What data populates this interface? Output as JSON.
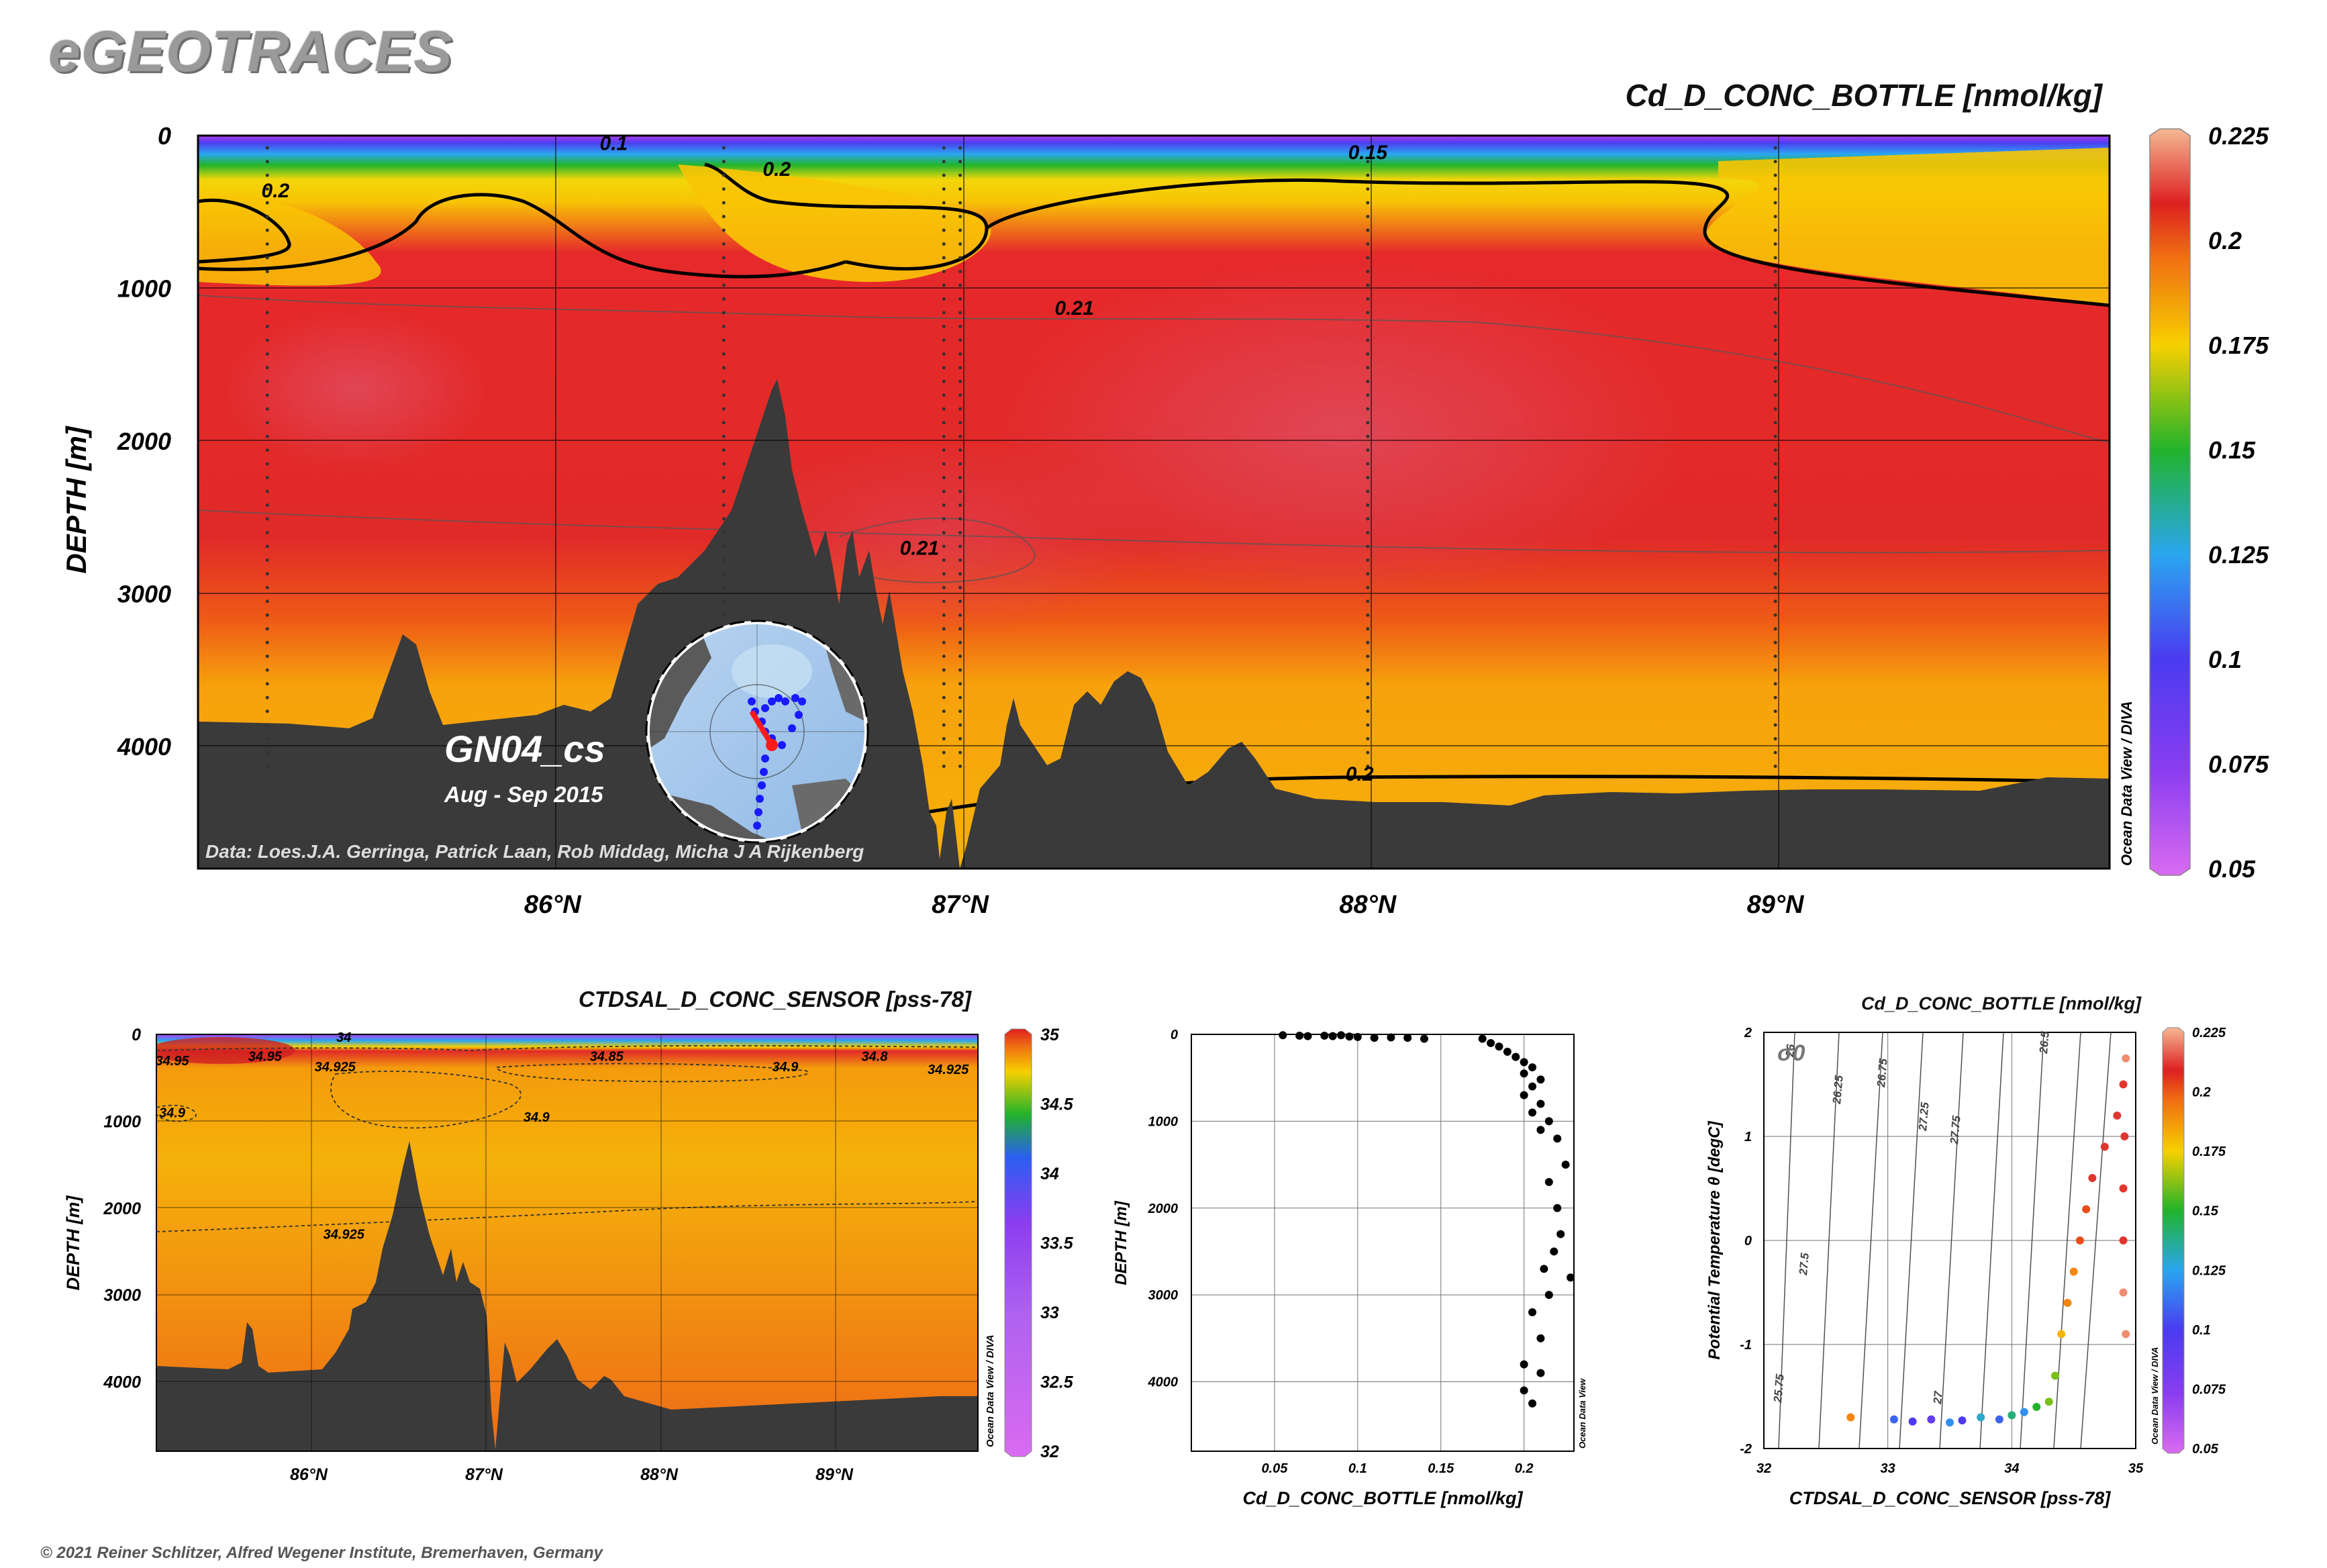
{
  "brand": "eGEOTRACES",
  "copyright": "© 2021 Reiner Schlitzer, Alfred Wegener Institute, Bremerhaven, Germany",
  "watermark": "Ocean Data View / DIVA",
  "watermark_odv": "Ocean Data View",
  "colors": {
    "bathymetry": "#3a3a3a",
    "contour": "#000000",
    "station_dot": "#000000",
    "track": "#1a1aff",
    "track_highlight": "#ff1a1a"
  },
  "main_section": {
    "title": "Cd_D_CONC_BOTTLE [nmol/kg]",
    "cruise": "GN04_cs",
    "period": "Aug - Sep 2015",
    "credit": "Data: Loes.J.A. Gerringa, Patrick Laan, Rob Middag, Micha J A Rijkenberg"
  },
  "salinity_section": {
    "title": "CTDSAL_D_CONC_SENSOR [pss-78]"
  },
  "profile_plot": {
    "xlabel": "Cd_D_CONC_BOTTLE [nmol/kg]",
    "ylabel": "DEPTH [m]"
  },
  "ts_plot": {
    "title": "Cd_D_CONC_BOTTLE [nmol/kg]",
    "sigma_label": "σ0",
    "xlabel": "CTDSAL_D_CONC_SENSOR [pss-78]",
    "ylabel": "Potential Temperature θ [degC]"
  },
  "chart_data": [
    {
      "type": "heatmap",
      "variable": "Cd_D_CONC_BOTTLE",
      "unit": "nmol/kg",
      "xlabel": "",
      "ylabel": "DEPTH [m]",
      "x_ticks": [
        "86°N",
        "87°N",
        "88°N",
        "89°N"
      ],
      "xlim": [
        85.13,
        89.82
      ],
      "y_ticks": [
        0,
        1000,
        2000,
        3000,
        4000
      ],
      "ylim": [
        4800,
        0
      ],
      "colorbar": {
        "ticks": [
          0.225,
          0.2,
          0.175,
          0.15,
          0.125,
          0.1,
          0.075,
          0.05
        ],
        "range": [
          0.05,
          0.225
        ]
      },
      "contour_labels": [
        {
          "label": "0.1",
          "lat": 86.15,
          "depth": 50
        },
        {
          "label": "0.15",
          "lat": 88.0,
          "depth": 110
        },
        {
          "label": "0.2",
          "lat": 85.32,
          "depth": 360
        },
        {
          "label": "0.2",
          "lat": 86.55,
          "depth": 220
        },
        {
          "label": "0.21",
          "lat": 87.28,
          "depth": 1130
        },
        {
          "label": "0.21",
          "lat": 86.9,
          "depth": 2700
        },
        {
          "label": "0.2",
          "lat": 87.98,
          "depth": 4180
        }
      ],
      "grid": true
    },
    {
      "type": "heatmap",
      "variable": "CTDSAL_D_CONC_SENSOR",
      "unit": "pss-78",
      "xlabel": "",
      "ylabel": "DEPTH [m]",
      "x_ticks": [
        "86°N",
        "87°N",
        "88°N",
        "89°N"
      ],
      "xlim": [
        85.13,
        89.82
      ],
      "y_ticks": [
        0,
        1000,
        2000,
        3000,
        4000
      ],
      "ylim": [
        4800,
        0
      ],
      "colorbar": {
        "ticks": [
          35,
          34.5,
          34,
          33.5,
          33,
          32.5,
          32
        ],
        "range": [
          32,
          35
        ]
      },
      "contour_labels": [
        {
          "label": "34",
          "lat": 86.2,
          "depth": 30
        },
        {
          "label": "34.95",
          "lat": 85.22,
          "depth": 300
        },
        {
          "label": "34.95",
          "lat": 85.75,
          "depth": 250
        },
        {
          "label": "34.925",
          "lat": 86.15,
          "depth": 370
        },
        {
          "label": "34.85",
          "lat": 87.7,
          "depth": 250
        },
        {
          "label": "34.9",
          "lat": 88.72,
          "depth": 370
        },
        {
          "label": "34.8",
          "lat": 89.23,
          "depth": 250
        },
        {
          "label": "34.925",
          "lat": 89.65,
          "depth": 400
        },
        {
          "label": "34.9",
          "lat": 85.22,
          "depth": 900
        },
        {
          "label": "34.9",
          "lat": 87.3,
          "depth": 950
        },
        {
          "label": "34.925",
          "lat": 86.2,
          "depth": 2300
        }
      ],
      "grid": true
    },
    {
      "type": "scatter",
      "xlabel": "Cd_D_CONC_BOTTLE [nmol/kg]",
      "ylabel": "DEPTH [m]",
      "xlim": [
        0.0,
        0.23
      ],
      "ylim": [
        4800,
        0
      ],
      "x_ticks": [
        0.05,
        0.1,
        0.15,
        0.2
      ],
      "y_ticks": [
        0,
        1000,
        2000,
        3000,
        4000
      ],
      "points": [
        [
          0.055,
          10
        ],
        [
          0.065,
          15
        ],
        [
          0.07,
          20
        ],
        [
          0.08,
          15
        ],
        [
          0.085,
          20
        ],
        [
          0.09,
          10
        ],
        [
          0.095,
          25
        ],
        [
          0.1,
          30
        ],
        [
          0.11,
          40
        ],
        [
          0.12,
          35
        ],
        [
          0.13,
          40
        ],
        [
          0.14,
          50
        ],
        [
          0.175,
          50
        ],
        [
          0.18,
          100
        ],
        [
          0.185,
          140
        ],
        [
          0.19,
          200
        ],
        [
          0.195,
          260
        ],
        [
          0.2,
          320
        ],
        [
          0.205,
          380
        ],
        [
          0.2,
          450
        ],
        [
          0.21,
          520
        ],
        [
          0.205,
          600
        ],
        [
          0.2,
          700
        ],
        [
          0.21,
          800
        ],
        [
          0.205,
          900
        ],
        [
          0.215,
          1000
        ],
        [
          0.21,
          1100
        ],
        [
          0.22,
          1200
        ],
        [
          0.225,
          1500
        ],
        [
          0.215,
          1700
        ],
        [
          0.22,
          2000
        ],
        [
          0.222,
          2300
        ],
        [
          0.218,
          2500
        ],
        [
          0.212,
          2700
        ],
        [
          0.228,
          2800
        ],
        [
          0.215,
          3000
        ],
        [
          0.205,
          3200
        ],
        [
          0.21,
          3500
        ],
        [
          0.2,
          3800
        ],
        [
          0.21,
          3900
        ],
        [
          0.2,
          4100
        ],
        [
          0.205,
          4250
        ]
      ],
      "grid": true
    },
    {
      "type": "scatter",
      "xlabel": "CTDSAL_D_CONC_SENSOR [pss-78]",
      "ylabel": "Potential Temperature θ [degC]",
      "xlim": [
        32,
        35
      ],
      "ylim": [
        -2,
        2
      ],
      "x_ticks": [
        32,
        33,
        34,
        35
      ],
      "y_ticks": [
        -2,
        -1,
        0,
        1,
        2
      ],
      "isopycnal_labels": [
        "26",
        "26.25",
        "26.75",
        "27.25",
        "27.75",
        "26.5",
        "27.5",
        "27",
        "25.75"
      ],
      "colorbar": {
        "ticks": [
          0.225,
          0.2,
          0.175,
          0.15,
          0.125,
          0.1,
          0.075,
          0.05
        ],
        "range": [
          0.05,
          0.225
        ]
      },
      "points": [
        [
          32.7,
          -1.7,
          0.19
        ],
        [
          33.05,
          -1.72,
          0.11
        ],
        [
          33.2,
          -1.74,
          0.1
        ],
        [
          33.35,
          -1.72,
          0.09
        ],
        [
          33.5,
          -1.75,
          0.12
        ],
        [
          33.6,
          -1.73,
          0.1
        ],
        [
          33.75,
          -1.7,
          0.13
        ],
        [
          33.9,
          -1.72,
          0.11
        ],
        [
          34.0,
          -1.68,
          0.14
        ],
        [
          34.1,
          -1.65,
          0.12
        ],
        [
          34.2,
          -1.6,
          0.15
        ],
        [
          34.3,
          -1.55,
          0.16
        ],
        [
          34.35,
          -1.3,
          0.16
        ],
        [
          34.4,
          -0.9,
          0.18
        ],
        [
          34.45,
          -0.6,
          0.19
        ],
        [
          34.5,
          -0.3,
          0.19
        ],
        [
          34.55,
          0.0,
          0.2
        ],
        [
          34.6,
          0.3,
          0.2
        ],
        [
          34.65,
          0.6,
          0.21
        ],
        [
          34.75,
          0.9,
          0.21
        ],
        [
          34.85,
          1.2,
          0.21
        ],
        [
          34.9,
          1.5,
          0.21
        ],
        [
          34.92,
          1.75,
          0.22
        ],
        [
          34.91,
          1.0,
          0.21
        ],
        [
          34.9,
          0.5,
          0.21
        ],
        [
          34.9,
          0.0,
          0.21
        ],
        [
          34.9,
          -0.5,
          0.22
        ],
        [
          34.92,
          -0.9,
          0.22
        ]
      ],
      "grid": true
    }
  ]
}
